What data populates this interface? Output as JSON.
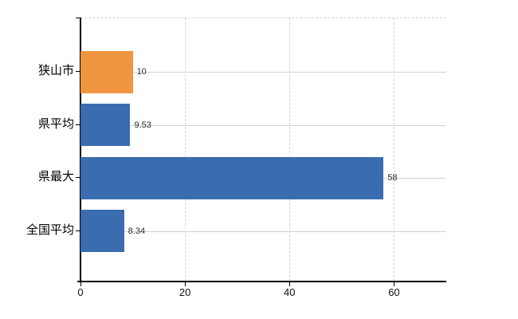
{
  "chart_data": {
    "type": "bar",
    "orientation": "horizontal",
    "title": "",
    "xlabel": "",
    "ylabel": "",
    "categories": [
      "狭山市",
      "県平均",
      "県最大",
      "全国平均"
    ],
    "values": [
      10,
      9.53,
      58,
      8.34
    ],
    "value_labels": [
      "10",
      "9.53",
      "58",
      "8.34"
    ],
    "bar_colors": [
      "#f0953f",
      "#3a6cb0",
      "#3a6cb0",
      "#3a6cb0"
    ],
    "xlim": [
      0,
      70
    ],
    "x_ticks": [
      0,
      20,
      40,
      60
    ],
    "x_tick_labels": [
      "0",
      "20",
      "40",
      "60"
    ],
    "grid": {
      "vertical": "dashed at x ticks",
      "horizontal": "solid at category rows",
      "top_boundary": "dashed"
    },
    "legend": "none"
  },
  "colors": {
    "bar_orange": "#f0953f",
    "bar_blue": "#3a6cb0",
    "grid_dashed": "#d6d6d6",
    "grid_row": "#ccd5cc",
    "axis": "#000000",
    "value_text": "#2e2e2e",
    "label_text": "#000000",
    "background": "#ffffff"
  }
}
